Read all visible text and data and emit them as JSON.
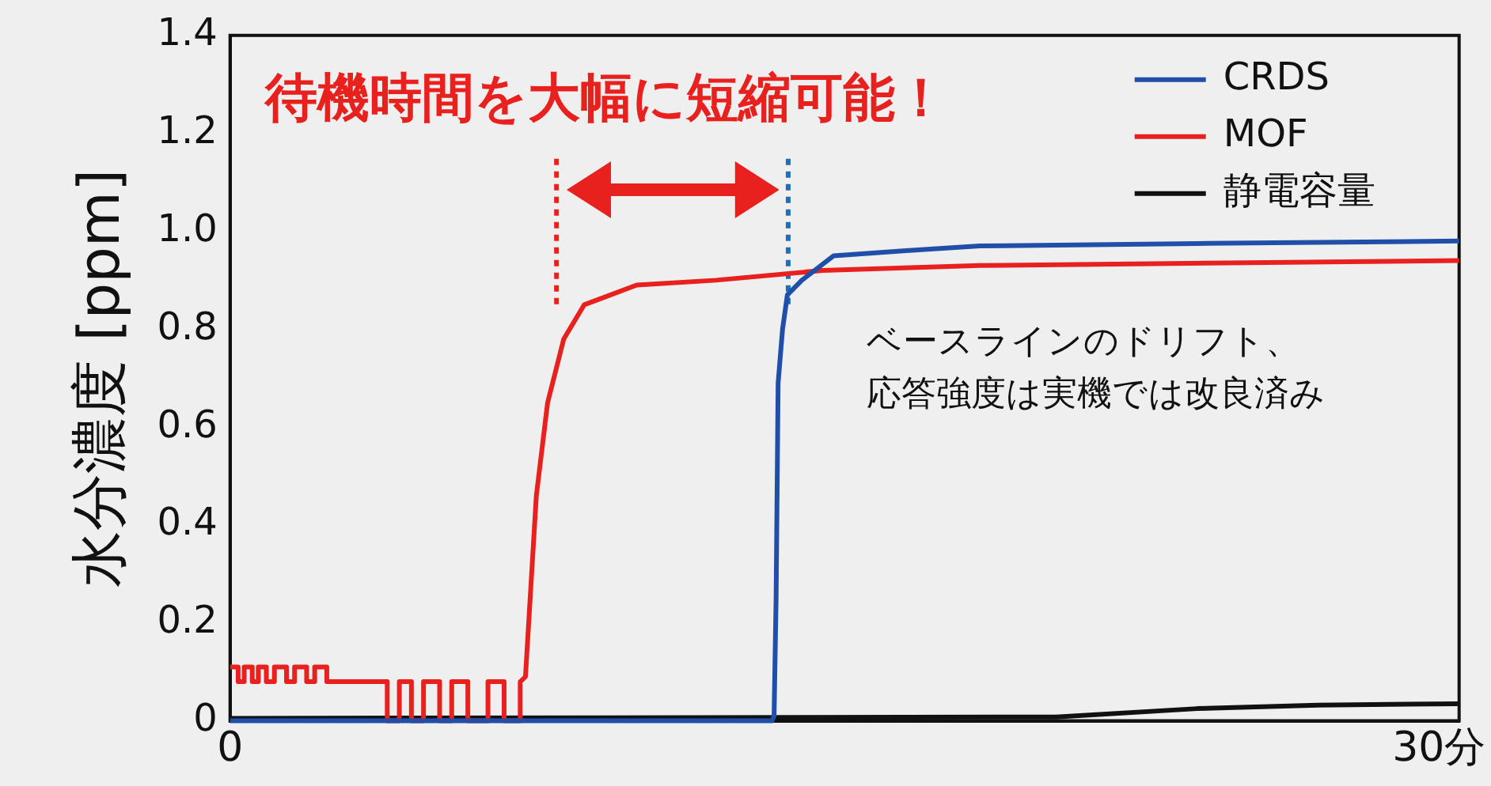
{
  "chart_data": {
    "type": "line",
    "ylabel": "水分濃度 [ppm]",
    "annotations": [
      "待機時間を大幅に短縮可能！",
      "ベースラインのドリフト、",
      "応答強度は実機では改良済み"
    ],
    "xlim": [
      0,
      30.5
    ],
    "ylim": [
      0,
      1.4
    ],
    "xticks": [
      0,
      {
        "value": 30,
        "label": "30分"
      }
    ],
    "yticks": [
      0,
      0.2,
      0.4,
      0.6,
      0.8,
      {
        "value": 1,
        "label": "1.0"
      },
      1.2,
      1.4
    ],
    "grid": false,
    "legend": "top right",
    "marker": "none",
    "line_style": "solid",
    "ref_lines": [
      {
        "axis": "x",
        "value": 8.1,
        "color": "#e8201e",
        "line_style": "dotted"
      },
      {
        "axis": "x",
        "value": 13.85,
        "color": "#1f6fb5",
        "line_style": "dotted"
      }
    ],
    "series": [
      {
        "name": "CRDS",
        "color": "#1f4fa8",
        "x": [
          0,
          13.45,
          13.5,
          13.55,
          13.6,
          13.71,
          13.83,
          14.19,
          14.98,
          16.7,
          18.6,
          24,
          30.5
        ],
        "values": [
          0,
          0,
          0.01,
          0.25,
          0.69,
          0.8,
          0.87,
          0.9,
          0.95,
          0.96,
          0.97,
          0.975,
          0.98
        ]
      },
      {
        "name": "MOF",
        "color": "#e8201e",
        "x": [
          0,
          0.2,
          0.2,
          0.35,
          0.35,
          0.55,
          0.55,
          0.7,
          0.7,
          0.9,
          0.9,
          1.1,
          1.1,
          1.4,
          1.4,
          1.6,
          1.6,
          1.9,
          1.9,
          2.1,
          2.1,
          2.4,
          2.4,
          3.9,
          3.9,
          4.2,
          4.2,
          4.5,
          4.5,
          4.8,
          4.8,
          5.2,
          5.2,
          5.5,
          5.5,
          5.9,
          5.9,
          6.4,
          6.4,
          6.8,
          6.8,
          7.2,
          7.2,
          7.33,
          7.6,
          7.88,
          8.28,
          8.79,
          10.09,
          12.06,
          14.7,
          18.6,
          30.5
        ],
        "values": [
          0.11,
          0.11,
          0.08,
          0.08,
          0.11,
          0.11,
          0.08,
          0.08,
          0.11,
          0.11,
          0.08,
          0.08,
          0.11,
          0.11,
          0.08,
          0.08,
          0.11,
          0.11,
          0.08,
          0.08,
          0.11,
          0.11,
          0.08,
          0.08,
          0,
          0,
          0.08,
          0.08,
          0,
          0,
          0.08,
          0.08,
          0,
          0,
          0.08,
          0.08,
          0,
          0,
          0.08,
          0.08,
          0,
          0,
          0.08,
          0.09,
          0.46,
          0.65,
          0.78,
          0.85,
          0.89,
          0.9,
          0.92,
          0.93,
          0.94
        ]
      },
      {
        "name": "静電容量",
        "color": "#111111",
        "x": [
          0,
          20.5,
          24,
          27,
          30.5
        ],
        "values": [
          0.005,
          0.008,
          0.025,
          0.032,
          0.035
        ]
      }
    ]
  }
}
